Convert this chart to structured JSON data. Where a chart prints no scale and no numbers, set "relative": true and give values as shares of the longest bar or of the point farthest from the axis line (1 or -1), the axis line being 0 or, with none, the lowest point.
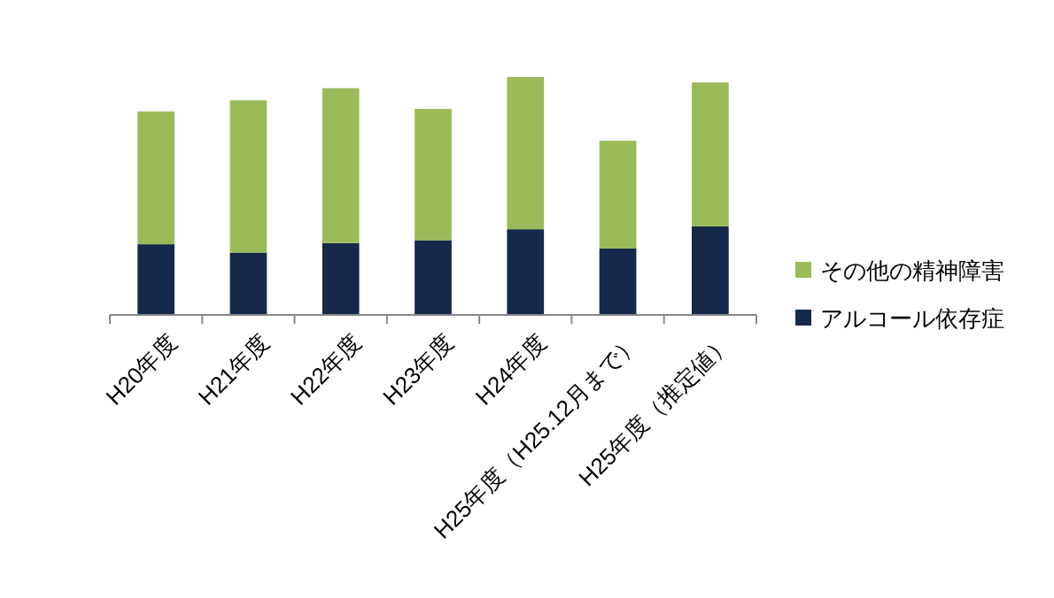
{
  "chart_data": {
    "type": "bar",
    "stacked": true,
    "relative": true,
    "categories": [
      "H20年度",
      "H21年度",
      "H22年度",
      "H23年度",
      "H24年度",
      "H25年度（H25.12月まで）",
      "H25年度（推定値）"
    ],
    "series": [
      {
        "name": "アルコール依存症",
        "color": "#17294a",
        "values": [
          0.297,
          0.262,
          0.302,
          0.314,
          0.36,
          0.279,
          0.372
        ]
      },
      {
        "name": "その他の精神障害",
        "color": "#9bbb59",
        "values": [
          0.558,
          0.64,
          0.651,
          0.552,
          0.64,
          0.453,
          0.605
        ]
      }
    ],
    "legend": "right"
  }
}
